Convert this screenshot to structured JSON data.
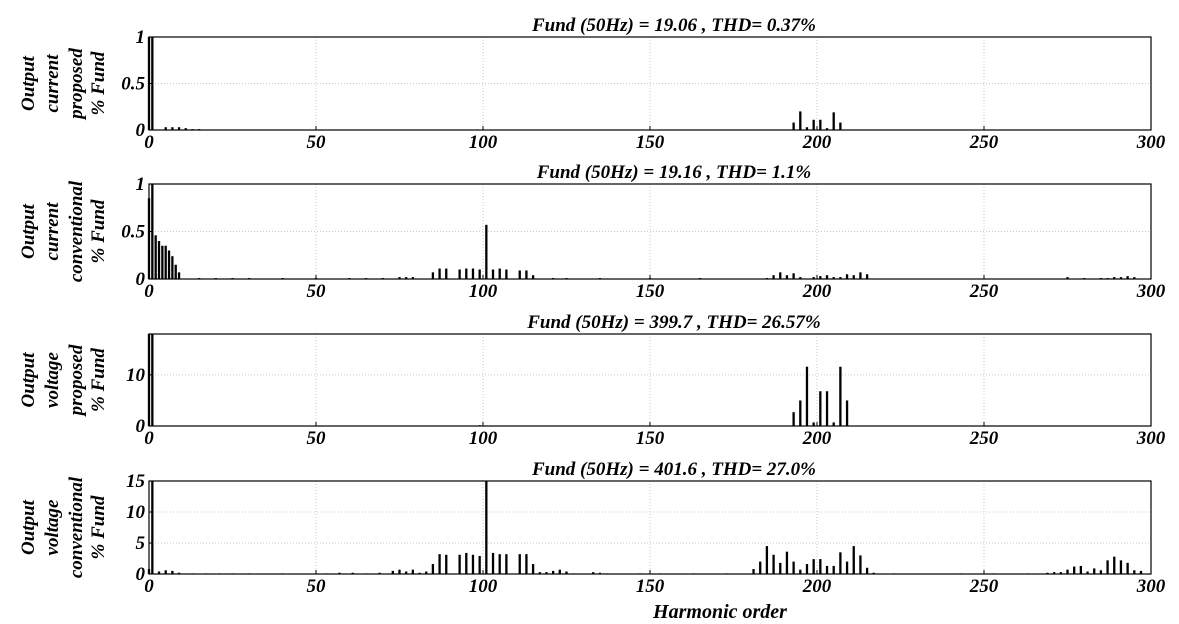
{
  "chart_data": [
    {
      "type": "bar",
      "title": "Fund (50Hz) = 19.06 , THD= 0.37%",
      "ylabel": [
        "Output",
        "current",
        "proposed",
        "% Fund"
      ],
      "xlabel": "",
      "xlim": [
        0,
        300
      ],
      "ylim": [
        0,
        1
      ],
      "xticks": [
        0,
        50,
        100,
        150,
        200,
        250,
        300
      ],
      "yticks": [
        0,
        0.5,
        1
      ],
      "ytick_labels": [
        "0",
        "0.5",
        "1"
      ],
      "grid": true,
      "x": [
        0,
        1,
        5,
        7,
        9,
        11,
        13,
        15,
        193,
        195,
        197,
        199,
        201,
        203,
        205,
        207
      ],
      "values": [
        1.0,
        1.0,
        0.03,
        0.03,
        0.03,
        0.02,
        0.01,
        0.01,
        0.08,
        0.2,
        0.03,
        0.11,
        0.11,
        0.02,
        0.19,
        0.08
      ]
    },
    {
      "type": "bar",
      "title": "Fund (50Hz) = 19.16 , THD= 1.1%",
      "ylabel": [
        "Output",
        "current",
        "conventional",
        "% Fund"
      ],
      "xlabel": "",
      "xlim": [
        0,
        300
      ],
      "ylim": [
        0,
        1
      ],
      "xticks": [
        0,
        50,
        100,
        150,
        200,
        250,
        300
      ],
      "yticks": [
        0,
        0.5,
        1
      ],
      "ytick_labels": [
        "0",
        "0.5",
        "1"
      ],
      "grid": true,
      "x": [
        0,
        1,
        2,
        3,
        4,
        5,
        6,
        7,
        8,
        9,
        15,
        20,
        25,
        30,
        40,
        50,
        60,
        65,
        70,
        75,
        77,
        79,
        85,
        87,
        89,
        93,
        95,
        97,
        99,
        101,
        103,
        105,
        107,
        111,
        113,
        115,
        121,
        125,
        135,
        150,
        165,
        185,
        187,
        189,
        191,
        193,
        195,
        199,
        201,
        203,
        205,
        207,
        209,
        211,
        213,
        215,
        275,
        280,
        285,
        287,
        289,
        291,
        293,
        295
      ],
      "values": [
        0.85,
        1.0,
        0.46,
        0.4,
        0.35,
        0.35,
        0.3,
        0.24,
        0.15,
        0.07,
        0.01,
        0.01,
        0.01,
        0.01,
        0.01,
        0.01,
        0.01,
        0.01,
        0.01,
        0.02,
        0.02,
        0.02,
        0.07,
        0.11,
        0.11,
        0.1,
        0.11,
        0.11,
        0.1,
        0.57,
        0.1,
        0.11,
        0.1,
        0.09,
        0.09,
        0.04,
        0.01,
        0.01,
        0.01,
        0.01,
        0.01,
        0.01,
        0.04,
        0.07,
        0.04,
        0.06,
        0.02,
        0.02,
        0.03,
        0.04,
        0.02,
        0.02,
        0.05,
        0.04,
        0.07,
        0.05,
        0.02,
        0.01,
        0.01,
        0.01,
        0.02,
        0.02,
        0.03,
        0.02
      ]
    },
    {
      "type": "bar",
      "title": "Fund (50Hz) = 399.7 , THD= 26.57%",
      "ylabel": [
        "Output",
        "voltage",
        "proposed",
        "% Fund"
      ],
      "xlabel": "",
      "xlim": [
        0,
        300
      ],
      "ylim": [
        0,
        18
      ],
      "xticks": [
        0,
        50,
        100,
        150,
        200,
        250,
        300
      ],
      "yticks": [
        0,
        10
      ],
      "ytick_labels": [
        "0",
        "10"
      ],
      "grid": true,
      "x": [
        0,
        1,
        5,
        7,
        97,
        99,
        101,
        193,
        195,
        197,
        199,
        201,
        203,
        205,
        207,
        209,
        297
      ],
      "values": [
        18,
        18,
        0.1,
        0.1,
        0.1,
        0.15,
        0.1,
        2.7,
        5.0,
        11.6,
        0.7,
        6.8,
        6.8,
        0.7,
        11.6,
        5.0,
        0.1
      ]
    },
    {
      "type": "bar",
      "title": "Fund (50Hz) = 401.6 , THD= 27.0%",
      "ylabel": [
        "Output",
        "voltage",
        "conventional",
        "% Fund"
      ],
      "xlabel": "Harmonic order",
      "xlim": [
        0,
        300
      ],
      "ylim": [
        0,
        15
      ],
      "xticks": [
        0,
        50,
        100,
        150,
        200,
        250,
        300
      ],
      "yticks": [
        0,
        5,
        10,
        15
      ],
      "ytick_labels": [
        "0",
        "5",
        "10",
        "15"
      ],
      "grid": true,
      "x": [
        0,
        1,
        3,
        5,
        7,
        9,
        13,
        17,
        21,
        25,
        30,
        40,
        53,
        57,
        61,
        65,
        69,
        73,
        75,
        77,
        79,
        81,
        83,
        85,
        87,
        89,
        93,
        95,
        97,
        99,
        101,
        103,
        105,
        107,
        111,
        113,
        115,
        117,
        119,
        121,
        123,
        125,
        127,
        133,
        135,
        137,
        147,
        153,
        163,
        173,
        181,
        183,
        185,
        187,
        189,
        191,
        193,
        195,
        197,
        199,
        201,
        203,
        205,
        207,
        209,
        211,
        213,
        215,
        217,
        223,
        243,
        253,
        263,
        269,
        271,
        273,
        275,
        277,
        279,
        281,
        283,
        285,
        287,
        289,
        291,
        293,
        295,
        297
      ],
      "values": [
        0.8,
        15,
        0.4,
        0.6,
        0.5,
        0.2,
        0.1,
        0.1,
        0.1,
        0.1,
        0.1,
        0.1,
        0.1,
        0.2,
        0.2,
        0.1,
        0.2,
        0.5,
        0.7,
        0.4,
        0.7,
        0.2,
        0.4,
        1.6,
        3.2,
        3.1,
        3.1,
        3.4,
        3.1,
        2.9,
        15,
        3.4,
        3.2,
        3.2,
        3.2,
        3.2,
        1.6,
        0.3,
        0.3,
        0.5,
        0.7,
        0.4,
        0.1,
        0.3,
        0.2,
        0.1,
        0.1,
        0.1,
        0.1,
        0.1,
        0.8,
        2.0,
        4.5,
        3.1,
        1.8,
        3.6,
        2.0,
        0.7,
        1.6,
        2.4,
        2.4,
        1.3,
        1.3,
        3.5,
        2.0,
        4.5,
        3.0,
        1.0,
        0.2,
        0.1,
        0.1,
        0.1,
        0.1,
        0.2,
        0.3,
        0.3,
        0.7,
        1.2,
        1.3,
        0.4,
        0.9,
        0.6,
        2.2,
        2.8,
        2.2,
        1.8,
        0.6,
        0.5
      ]
    }
  ]
}
